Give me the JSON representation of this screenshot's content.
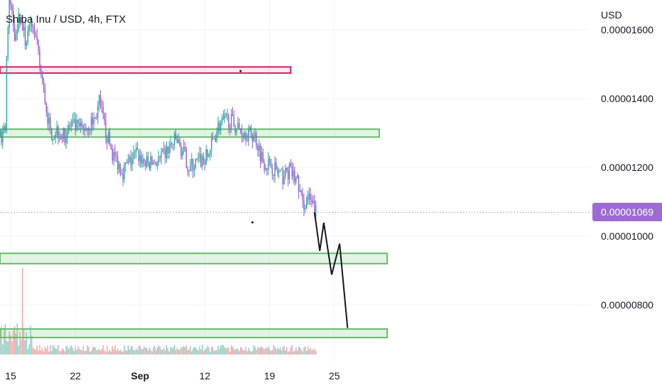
{
  "header": {
    "title": "Shiba Inu / USD, 4h, FTX",
    "currency": "USD"
  },
  "last_price": {
    "label": "0.00001069",
    "value": 1.069e-05,
    "color": "#9c6cd4"
  },
  "colors": {
    "up": "#26a69a",
    "down": "#9b59d0",
    "support_zone": "#66bb6a",
    "resistance_zone": "#d81b60",
    "volume_up": "#7fcfc6",
    "volume_down": "#f2a3a3",
    "projection": "#131722"
  },
  "chart_data": {
    "type": "candlestick",
    "y_tick_labels": [
      "0.00001600",
      "0.00001400",
      "0.00001200",
      "0.00001000",
      "0.00000800"
    ],
    "y_ticks": [
      1.6e-05,
      1.4e-05,
      1.2e-05,
      1e-05,
      8e-06
    ],
    "ylim": [
      6.5e-06,
      1.65e-05
    ],
    "x_tick_labels": [
      "15",
      "22",
      "Sep",
      "12",
      "19",
      "25"
    ],
    "x_ticks_index": [
      15,
      64,
      113,
      162,
      211,
      260
    ],
    "bars_per_day": 7,
    "grid": true,
    "price_path": [
      {
        "i": 0,
        "p": 1.24e-05
      },
      {
        "i": 8,
        "p": 1.29e-05
      },
      {
        "i": 11,
        "p": 1.33e-05
      },
      {
        "i": 12,
        "p": 1.52e-05
      },
      {
        "i": 14,
        "p": 1.7e-05
      },
      {
        "i": 18,
        "p": 1.59e-05
      },
      {
        "i": 22,
        "p": 1.64e-05
      },
      {
        "i": 26,
        "p": 1.57e-05
      },
      {
        "i": 32,
        "p": 1.62e-05
      },
      {
        "i": 36,
        "p": 1.52e-05
      },
      {
        "i": 40,
        "p": 1.42e-05
      },
      {
        "i": 45,
        "p": 1.3e-05
      },
      {
        "i": 50,
        "p": 1.31e-05
      },
      {
        "i": 55,
        "p": 1.29e-05
      },
      {
        "i": 60,
        "p": 1.32e-05
      },
      {
        "i": 70,
        "p": 1.31e-05
      },
      {
        "i": 79,
        "p": 1.34e-05
      },
      {
        "i": 82,
        "p": 1.39e-05
      },
      {
        "i": 86,
        "p": 1.32e-05
      },
      {
        "i": 92,
        "p": 1.24e-05
      },
      {
        "i": 100,
        "p": 1.19e-05
      },
      {
        "i": 110,
        "p": 1.24e-05
      },
      {
        "i": 118,
        "p": 1.21e-05
      },
      {
        "i": 128,
        "p": 1.22e-05
      },
      {
        "i": 140,
        "p": 1.28e-05
      },
      {
        "i": 146,
        "p": 1.24e-05
      },
      {
        "i": 150,
        "p": 1.2e-05
      },
      {
        "i": 164,
        "p": 1.23e-05
      },
      {
        "i": 172,
        "p": 1.32e-05
      },
      {
        "i": 180,
        "p": 1.34e-05
      },
      {
        "i": 188,
        "p": 1.31e-05
      },
      {
        "i": 200,
        "p": 1.29e-05
      },
      {
        "i": 206,
        "p": 1.22e-05
      },
      {
        "i": 214,
        "p": 1.2e-05
      },
      {
        "i": 220,
        "p": 1.17e-05
      },
      {
        "i": 226,
        "p": 1.19e-05
      },
      {
        "i": 232,
        "p": 1.16e-05
      },
      {
        "i": 236,
        "p": 1.09e-05
      },
      {
        "i": 240,
        "p": 1.11e-05
      },
      {
        "i": 246,
        "p": 1.07e-05
      }
    ],
    "zones": [
      {
        "kind": "resistance",
        "from_index": 0,
        "to_index": 227,
        "low": 1.474e-05,
        "high": 1.492e-05
      },
      {
        "kind": "support",
        "from_index": 0,
        "to_index": 294,
        "low": 1.288e-05,
        "high": 1.311e-05
      },
      {
        "kind": "support",
        "from_index": 0,
        "to_index": 300,
        "low": 9.2e-06,
        "high": 9.5e-06
      },
      {
        "kind": "support",
        "from_index": 0,
        "to_index": 300,
        "low": 7.05e-06,
        "high": 7.3e-06
      }
    ],
    "projection": [
      {
        "i": 245,
        "p": 1.069e-05
      },
      {
        "i": 249,
        "p": 9.57e-06
      },
      {
        "i": 252,
        "p": 1.039e-05
      },
      {
        "i": 258,
        "p": 8.88e-06
      },
      {
        "i": 264,
        "p": 9.78e-06
      },
      {
        "i": 270,
        "p": 7.33e-06
      }
    ],
    "dots": [
      {
        "i": 189,
        "p": 1.48e-05
      },
      {
        "i": 198,
        "p": 1.04e-05
      }
    ]
  }
}
